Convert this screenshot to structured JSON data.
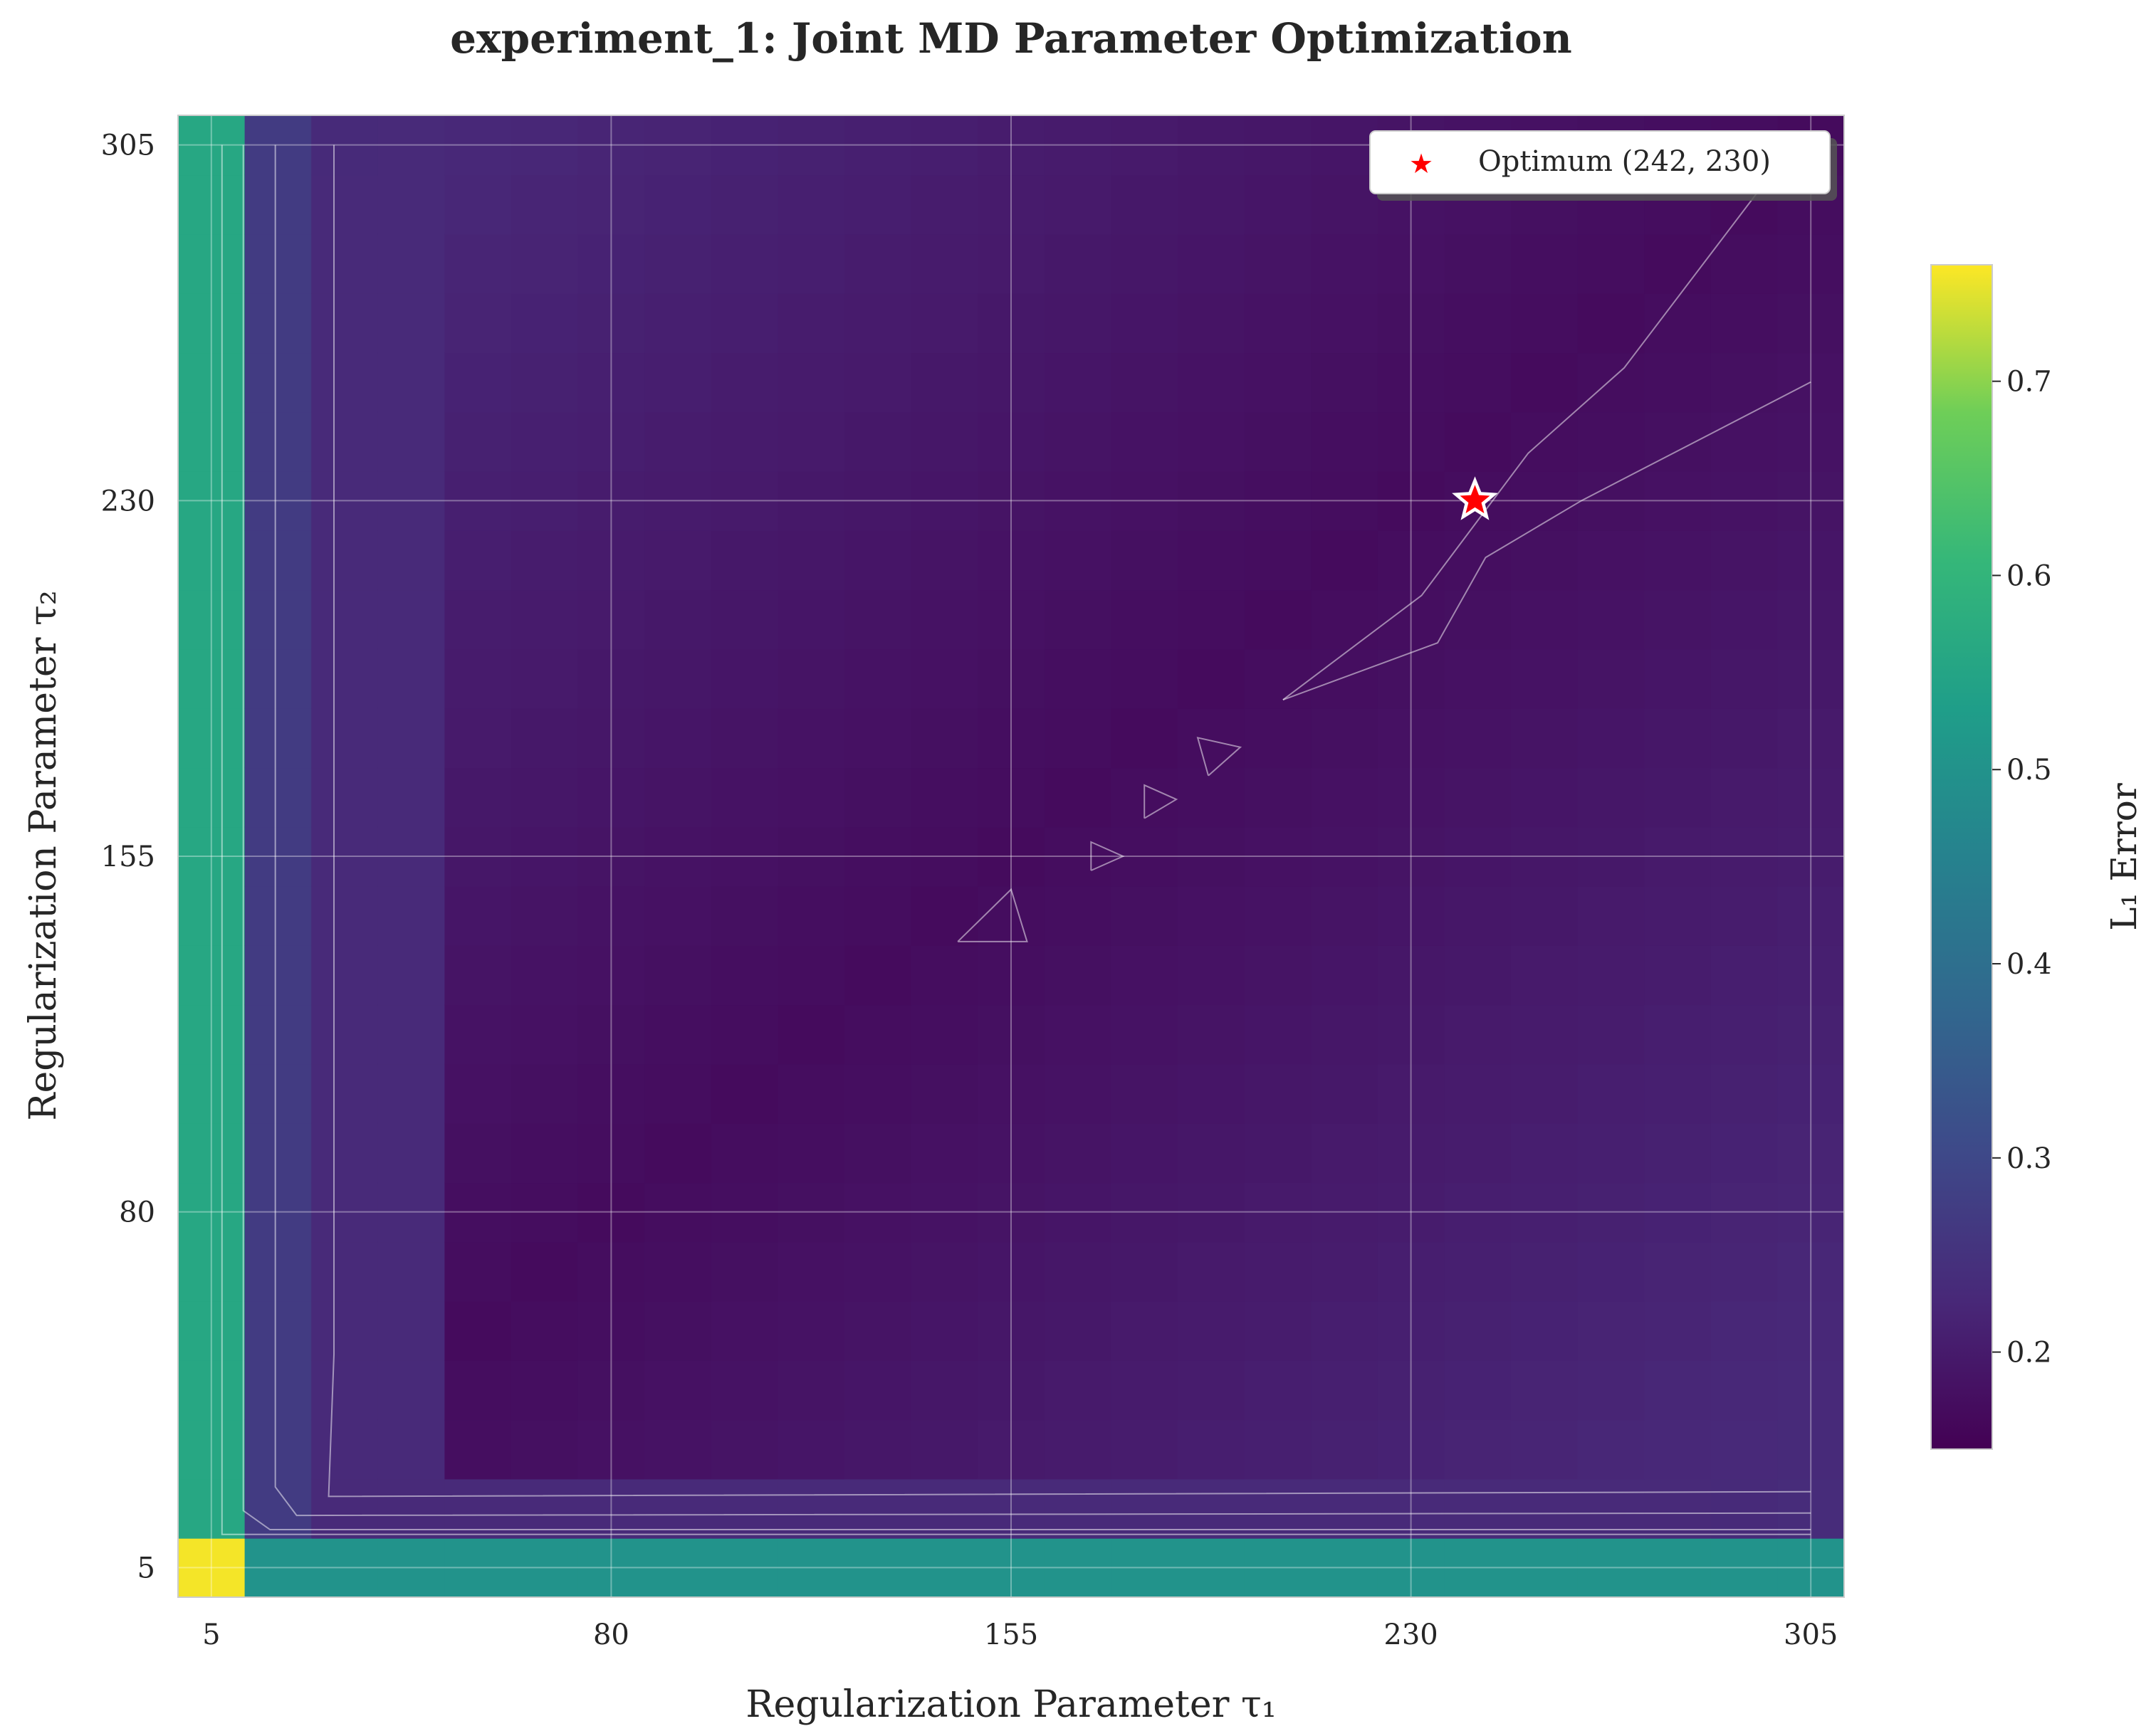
{
  "chart_data": {
    "type": "heatmap",
    "title": "experiment_1: Joint MD Parameter Optimization",
    "xlabel": "Regularization Parameter τ₁",
    "ylabel": "Regularization Parameter τ₂",
    "xlim": [
      -1.25,
      311.25
    ],
    "ylim": [
      -1.25,
      311.25
    ],
    "x_ticks": [
      5,
      80,
      155,
      230,
      305
    ],
    "y_ticks": [
      5,
      80,
      155,
      230,
      305
    ],
    "grid": true,
    "grid_step": 12.5,
    "grid_values": [
      5,
      17.5,
      30,
      42.5,
      55,
      67.5,
      80,
      92.5,
      105,
      117.5,
      130,
      142.5,
      155,
      167.5,
      180,
      192.5,
      205,
      217.5,
      230,
      242.5,
      255,
      267.5,
      280,
      292.5,
      305
    ],
    "colormap": "viridis",
    "colorbar": {
      "label": "L₁ Error",
      "min": 0.15,
      "max": 0.76,
      "ticks": [
        0.2,
        0.3,
        0.4,
        0.5,
        0.6,
        0.7
      ]
    },
    "marker": {
      "label": "Optimum (242, 230)",
      "x": 242,
      "y": 230,
      "color": "#ff0000"
    },
    "legend_position": "top-right",
    "contour_color": "#ffffff"
  }
}
